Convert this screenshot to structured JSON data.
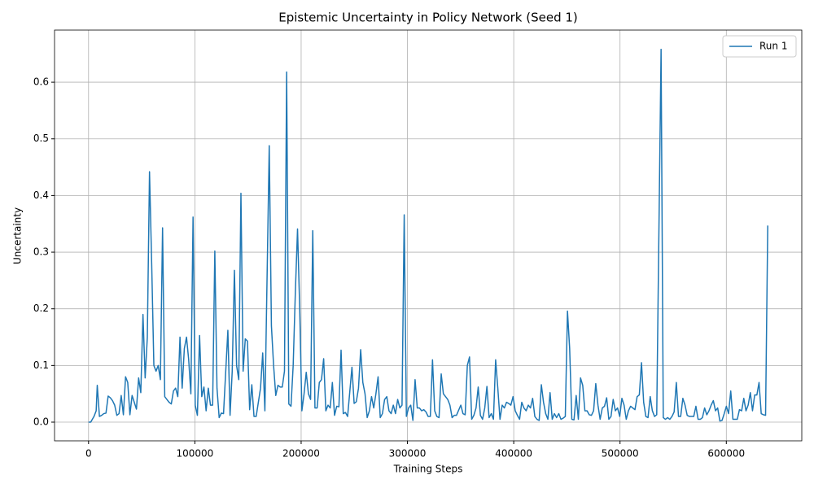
{
  "chart_data": {
    "type": "line",
    "title": "Epistemic Uncertainty in Policy Network (Seed 1)",
    "xlabel": "Training Steps",
    "ylabel": "Uncertainty",
    "xlim": [
      -32000,
      671000
    ],
    "ylim": [
      -0.033,
      0.692
    ],
    "xticks": [
      0,
      100000,
      200000,
      300000,
      400000,
      500000,
      600000
    ],
    "yticks": [
      {
        "value": 0,
        "label": "0.0"
      },
      0.1,
      0.2,
      0.3,
      0.4,
      0.5,
      0.6
    ],
    "grid": true,
    "legend": "upper right",
    "x": [
      0,
      2048,
      5120,
      7168,
      8192,
      10240,
      12288,
      14336,
      16384,
      18432,
      20480,
      22528,
      24576,
      26624,
      28672,
      30720,
      32768,
      34816,
      36864,
      38912,
      40960,
      43008,
      45056,
      47104,
      49152,
      51200,
      53248,
      55296,
      57344,
      59392,
      61440,
      63488,
      65536,
      67584,
      69632,
      71680,
      73728,
      75776,
      77824,
      79872,
      81920,
      83968,
      86016,
      88064,
      90112,
      92160,
      94208,
      96256,
      98304,
      100352,
      102400,
      104448,
      106496,
      108544,
      110592,
      112640,
      114688,
      116736,
      118784,
      120832,
      122880,
      124928,
      126976,
      131072,
      133120,
      135168,
      137216,
      139264,
      141312,
      143360,
      145408,
      147456,
      149504,
      151552,
      153600,
      155648,
      157696,
      161792,
      163840,
      165888,
      169984,
      172032,
      174080,
      176128,
      178176,
      180224,
      182272,
      184320,
      186368,
      188416,
      190464,
      192512,
      194560,
      196608,
      198656,
      200704,
      202752,
      204800,
      206848,
      208896,
      210944,
      212992,
      215040,
      217088,
      219136,
      221184,
      223232,
      225280,
      227328,
      229376,
      231424,
      233472,
      235520,
      237568,
      239616,
      241664,
      243712,
      247808,
      249856,
      251904,
      253952,
      256000,
      258048,
      260096,
      262144,
      264192,
      266240,
      268288,
      270336,
      272384,
      274432,
      276480,
      278528,
      280576,
      282624,
      284672,
      286720,
      288768,
      290816,
      292864,
      294912,
      296960,
      299008,
      301056,
      303104,
      305152,
      307200,
      309248,
      311296,
      313344,
      315392,
      317440,
      319488,
      321536,
      323584,
      325632,
      327680,
      329728,
      331776,
      333824,
      335872,
      337920,
      339968,
      342016,
      344064,
      346112,
      350208,
      352256,
      354304,
      356352,
      358400,
      360448,
      362496,
      364544,
      366592,
      368640,
      370688,
      372736,
      374784,
      376832,
      378880,
      380928,
      382976,
      385024,
      387072,
      389120,
      391168,
      393216,
      395264,
      397312,
      399360,
      401408,
      403456,
      405504,
      407552,
      409600,
      411648,
      413696,
      415744,
      417792,
      419840,
      421888,
      423936,
      425984,
      428032,
      430080,
      432128,
      434176,
      436224,
      438272,
      440320,
      442368,
      444416,
      446464,
      448512,
      450560,
      452608,
      454656,
      456704,
      458752,
      460800,
      462848,
      464896,
      466944,
      468992,
      471040,
      473088,
      475136,
      477184,
      479232,
      481280,
      483328,
      485376,
      487424,
      489472,
      491520,
      493568,
      495616,
      497664,
      499712,
      501760,
      503808,
      505856,
      507904,
      509952,
      512000,
      514048,
      516096,
      518144,
      520192,
      522240,
      524288,
      526336,
      528384,
      530432,
      532480,
      534528,
      538624,
      540672,
      542720,
      544768,
      546816,
      548864,
      550912,
      552960,
      555008,
      557056,
      559104,
      561152,
      563200,
      565248,
      569344,
      571392,
      573440,
      575488,
      577536,
      579584,
      581632,
      583680,
      585728,
      587776,
      589824,
      591872,
      593920,
      595968,
      598016,
      600064,
      602112,
      604160,
      606208,
      608256,
      610304,
      612352,
      614400,
      616448,
      618496,
      620544,
      622592,
      624640,
      626688,
      628736,
      630784,
      632832,
      634880,
      636928,
      638976
    ],
    "series": [
      {
        "name": "Run 1",
        "color": "#1f77b4",
        "values": [
          0,
          0,
          0.01,
          0.02,
          0.065,
          0.01,
          0.012,
          0.015,
          0.016,
          0.046,
          0.043,
          0.038,
          0.03,
          0.012,
          0.015,
          0.047,
          0.013,
          0.08,
          0.07,
          0.013,
          0.047,
          0.035,
          0.023,
          0.078,
          0.052,
          0.19,
          0.078,
          0.15,
          0.442,
          0.28,
          0.1,
          0.09,
          0.1,
          0.075,
          0.343,
          0.045,
          0.04,
          0.035,
          0.032,
          0.055,
          0.06,
          0.045,
          0.15,
          0.06,
          0.13,
          0.15,
          0.11,
          0.05,
          0.362,
          0.03,
          0.012,
          0.153,
          0.045,
          0.062,
          0.02,
          0.06,
          0.03,
          0.03,
          0.302,
          0.06,
          0.008,
          0.016,
          0.015,
          0.162,
          0.012,
          0.09,
          0.268,
          0.1,
          0.075,
          0.404,
          0.09,
          0.147,
          0.143,
          0.022,
          0.066,
          0.01,
          0.01,
          0.06,
          0.122,
          0.02,
          0.488,
          0.17,
          0.1,
          0.047,
          0.065,
          0.062,
          0.062,
          0.09,
          0.618,
          0.032,
          0.028,
          0.1,
          0.23,
          0.341,
          0.2,
          0.02,
          0.05,
          0.088,
          0.05,
          0.04,
          0.338,
          0.025,
          0.025,
          0.07,
          0.075,
          0.112,
          0.02,
          0.03,
          0.025,
          0.07,
          0.012,
          0.028,
          0.027,
          0.127,
          0.015,
          0.017,
          0.01,
          0.097,
          0.033,
          0.036,
          0.06,
          0.128,
          0.07,
          0.05,
          0.008,
          0.02,
          0.045,
          0.025,
          0.05,
          0.08,
          0.008,
          0.015,
          0.04,
          0.045,
          0.02,
          0.015,
          0.03,
          0.015,
          0.04,
          0.025,
          0.03,
          0.366,
          0.01,
          0.025,
          0.03,
          0.003,
          0.075,
          0.025,
          0.025,
          0.02,
          0.022,
          0.018,
          0.01,
          0.01,
          0.11,
          0.02,
          0.01,
          0.008,
          0.085,
          0.05,
          0.045,
          0.04,
          0.03,
          0.008,
          0.012,
          0.012,
          0.03,
          0.015,
          0.013,
          0.1,
          0.115,
          0.005,
          0.012,
          0.025,
          0.062,
          0.012,
          0.005,
          0.025,
          0.063,
          0.008,
          0.015,
          0.005,
          0.11,
          0.06,
          0.005,
          0.03,
          0.025,
          0.035,
          0.033,
          0.03,
          0.045,
          0.02,
          0.012,
          0.005,
          0.035,
          0.025,
          0.02,
          0.03,
          0.025,
          0.042,
          0.01,
          0.005,
          0.003,
          0.066,
          0.035,
          0.015,
          0.005,
          0.052,
          0.005,
          0.015,
          0.008,
          0.015,
          0.005,
          0.007,
          0.01,
          0.196,
          0.13,
          0.005,
          0.004,
          0.047,
          0.005,
          0.078,
          0.065,
          0.02,
          0.02,
          0.013,
          0.012,
          0.02,
          0.068,
          0.03,
          0.005,
          0.025,
          0.028,
          0.043,
          0.005,
          0.01,
          0.04,
          0.02,
          0.025,
          0.01,
          0.042,
          0.03,
          0.005,
          0.02,
          0.028,
          0.025,
          0.022,
          0.045,
          0.048,
          0.105,
          0.035,
          0.01,
          0.008,
          0.045,
          0.02,
          0.01,
          0.013,
          0.658,
          0.008,
          0.005,
          0.008,
          0.005,
          0.01,
          0.018,
          0.07,
          0.01,
          0.01,
          0.042,
          0.03,
          0.012,
          0.01,
          0.01,
          0.028,
          0.005,
          0.005,
          0.008,
          0.025,
          0.013,
          0.02,
          0.03,
          0.038,
          0.02,
          0.025,
          0.002,
          0.003,
          0.015,
          0.028,
          0.015,
          0.055,
          0.005,
          0.005,
          0.005,
          0.022,
          0.02,
          0.042,
          0.02,
          0.03,
          0.052,
          0.02,
          0.048,
          0.048,
          0.07,
          0.015,
          0.013,
          0.012,
          0.347
        ]
      }
    ]
  }
}
